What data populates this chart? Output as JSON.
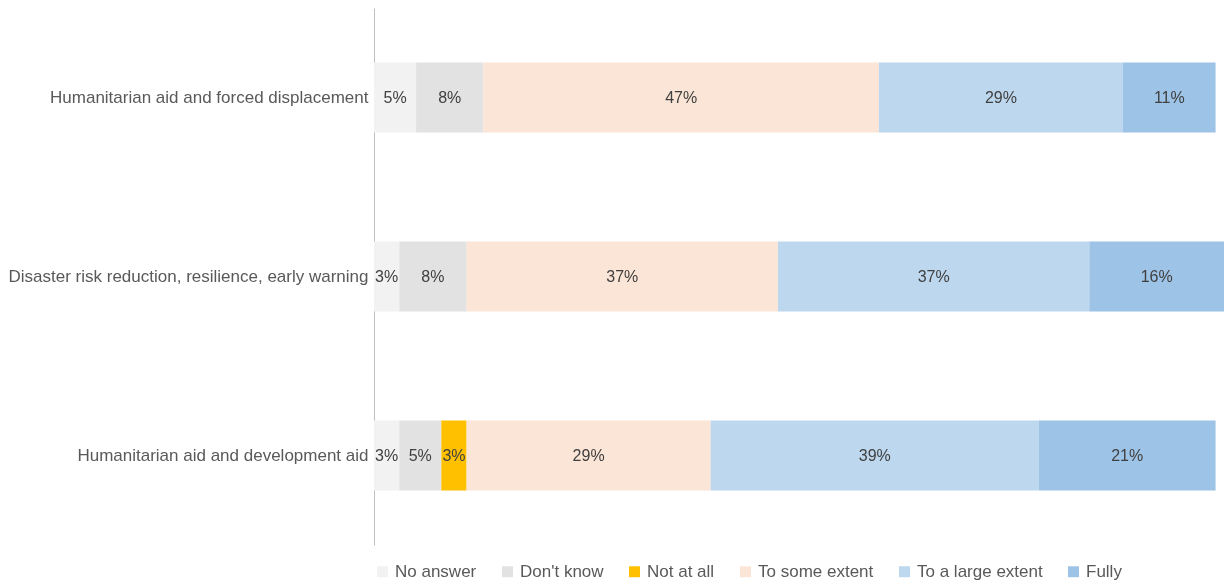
{
  "chart_data": {
    "type": "bar",
    "orientation": "horizontal",
    "stacked": true,
    "legend": "bottom",
    "categories": [
      "Humanitarian aid and forced displacement",
      "Disaster risk reduction, resilience, early warning",
      "Humanitarian aid and development aid"
    ],
    "series": [
      {
        "name": "No answer",
        "color": "#f2f2f2",
        "values": [
          5,
          3,
          3
        ],
        "value_labels": [
          "5%",
          "3%",
          "3%"
        ]
      },
      {
        "name": "Don't know",
        "color": "#e2e2e2",
        "values": [
          8,
          8,
          5
        ],
        "value_labels": [
          "8%",
          "8%",
          "5%"
        ]
      },
      {
        "name": "Not at all",
        "color": "#ffc000",
        "values": [
          null,
          null,
          3
        ],
        "value_labels": [
          null,
          null,
          "3%"
        ]
      },
      {
        "name": "To some extent",
        "color": "#fbe5d6",
        "values": [
          47,
          37,
          29
        ],
        "value_labels": [
          "47%",
          "37%",
          "29%"
        ]
      },
      {
        "name": "To a large extent",
        "color": "#bdd7ee",
        "values": [
          29,
          37,
          39
        ],
        "value_labels": [
          "29%",
          "37%",
          "39%"
        ]
      },
      {
        "name": "Fully",
        "color": "#9dc3e6",
        "values": [
          11,
          16,
          21
        ],
        "value_labels": [
          "11%",
          "16%",
          "21%"
        ]
      }
    ]
  }
}
